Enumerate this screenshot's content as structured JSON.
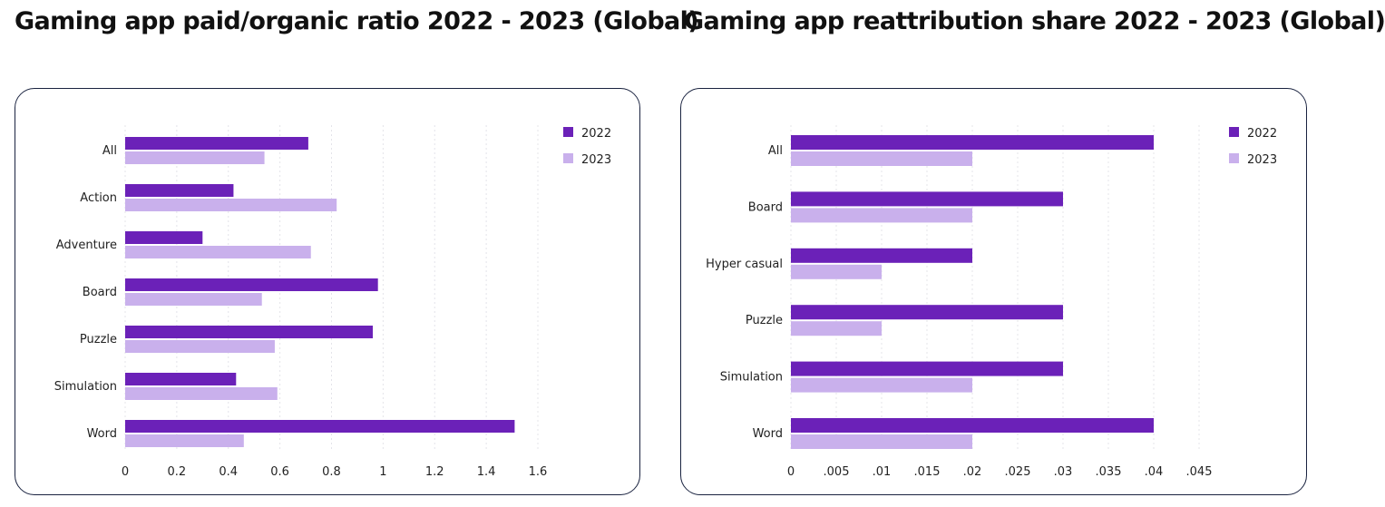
{
  "chart_data": [
    {
      "type": "bar",
      "orientation": "horizontal",
      "title": "Gaming app paid/organic ratio 2022 - 2023 (Global)",
      "categories": [
        "All",
        "Action",
        "Adventure",
        "Board",
        "Puzzle",
        "Simulation",
        "Word"
      ],
      "series": [
        {
          "name": "2022",
          "color": "#6b21b8",
          "values": [
            0.71,
            0.42,
            0.3,
            0.98,
            0.96,
            0.43,
            1.51
          ]
        },
        {
          "name": "2023",
          "color": "#c9b0ec",
          "values": [
            0.54,
            0.82,
            0.72,
            0.53,
            0.58,
            0.59,
            0.46
          ]
        }
      ],
      "xlim": [
        0,
        1.6
      ],
      "xticks": [
        "0",
        "0.2",
        "0.4",
        "0.6",
        "0.8",
        "1",
        "1.2",
        "1.4",
        "1.6"
      ],
      "grid": true,
      "legend": "top-right"
    },
    {
      "type": "bar",
      "orientation": "horizontal",
      "title": "Gaming app reattribution share 2022 - 2023 (Global)",
      "categories": [
        "All",
        "Board",
        "Hyper casual",
        "Puzzle",
        "Simulation",
        "Word"
      ],
      "series": [
        {
          "name": "2022",
          "color": "#6b21b8",
          "values": [
            0.04,
            0.03,
            0.02,
            0.03,
            0.03,
            0.04
          ]
        },
        {
          "name": "2023",
          "color": "#c9b0ec",
          "values": [
            0.02,
            0.02,
            0.01,
            0.01,
            0.02,
            0.02
          ]
        }
      ],
      "xlim": [
        0,
        0.045
      ],
      "xticks": [
        "0",
        ".005",
        ".01",
        ".015",
        ".02",
        ".025",
        ".03",
        ".035",
        ".04",
        ".045"
      ],
      "grid": true,
      "legend": "top-right"
    }
  ]
}
